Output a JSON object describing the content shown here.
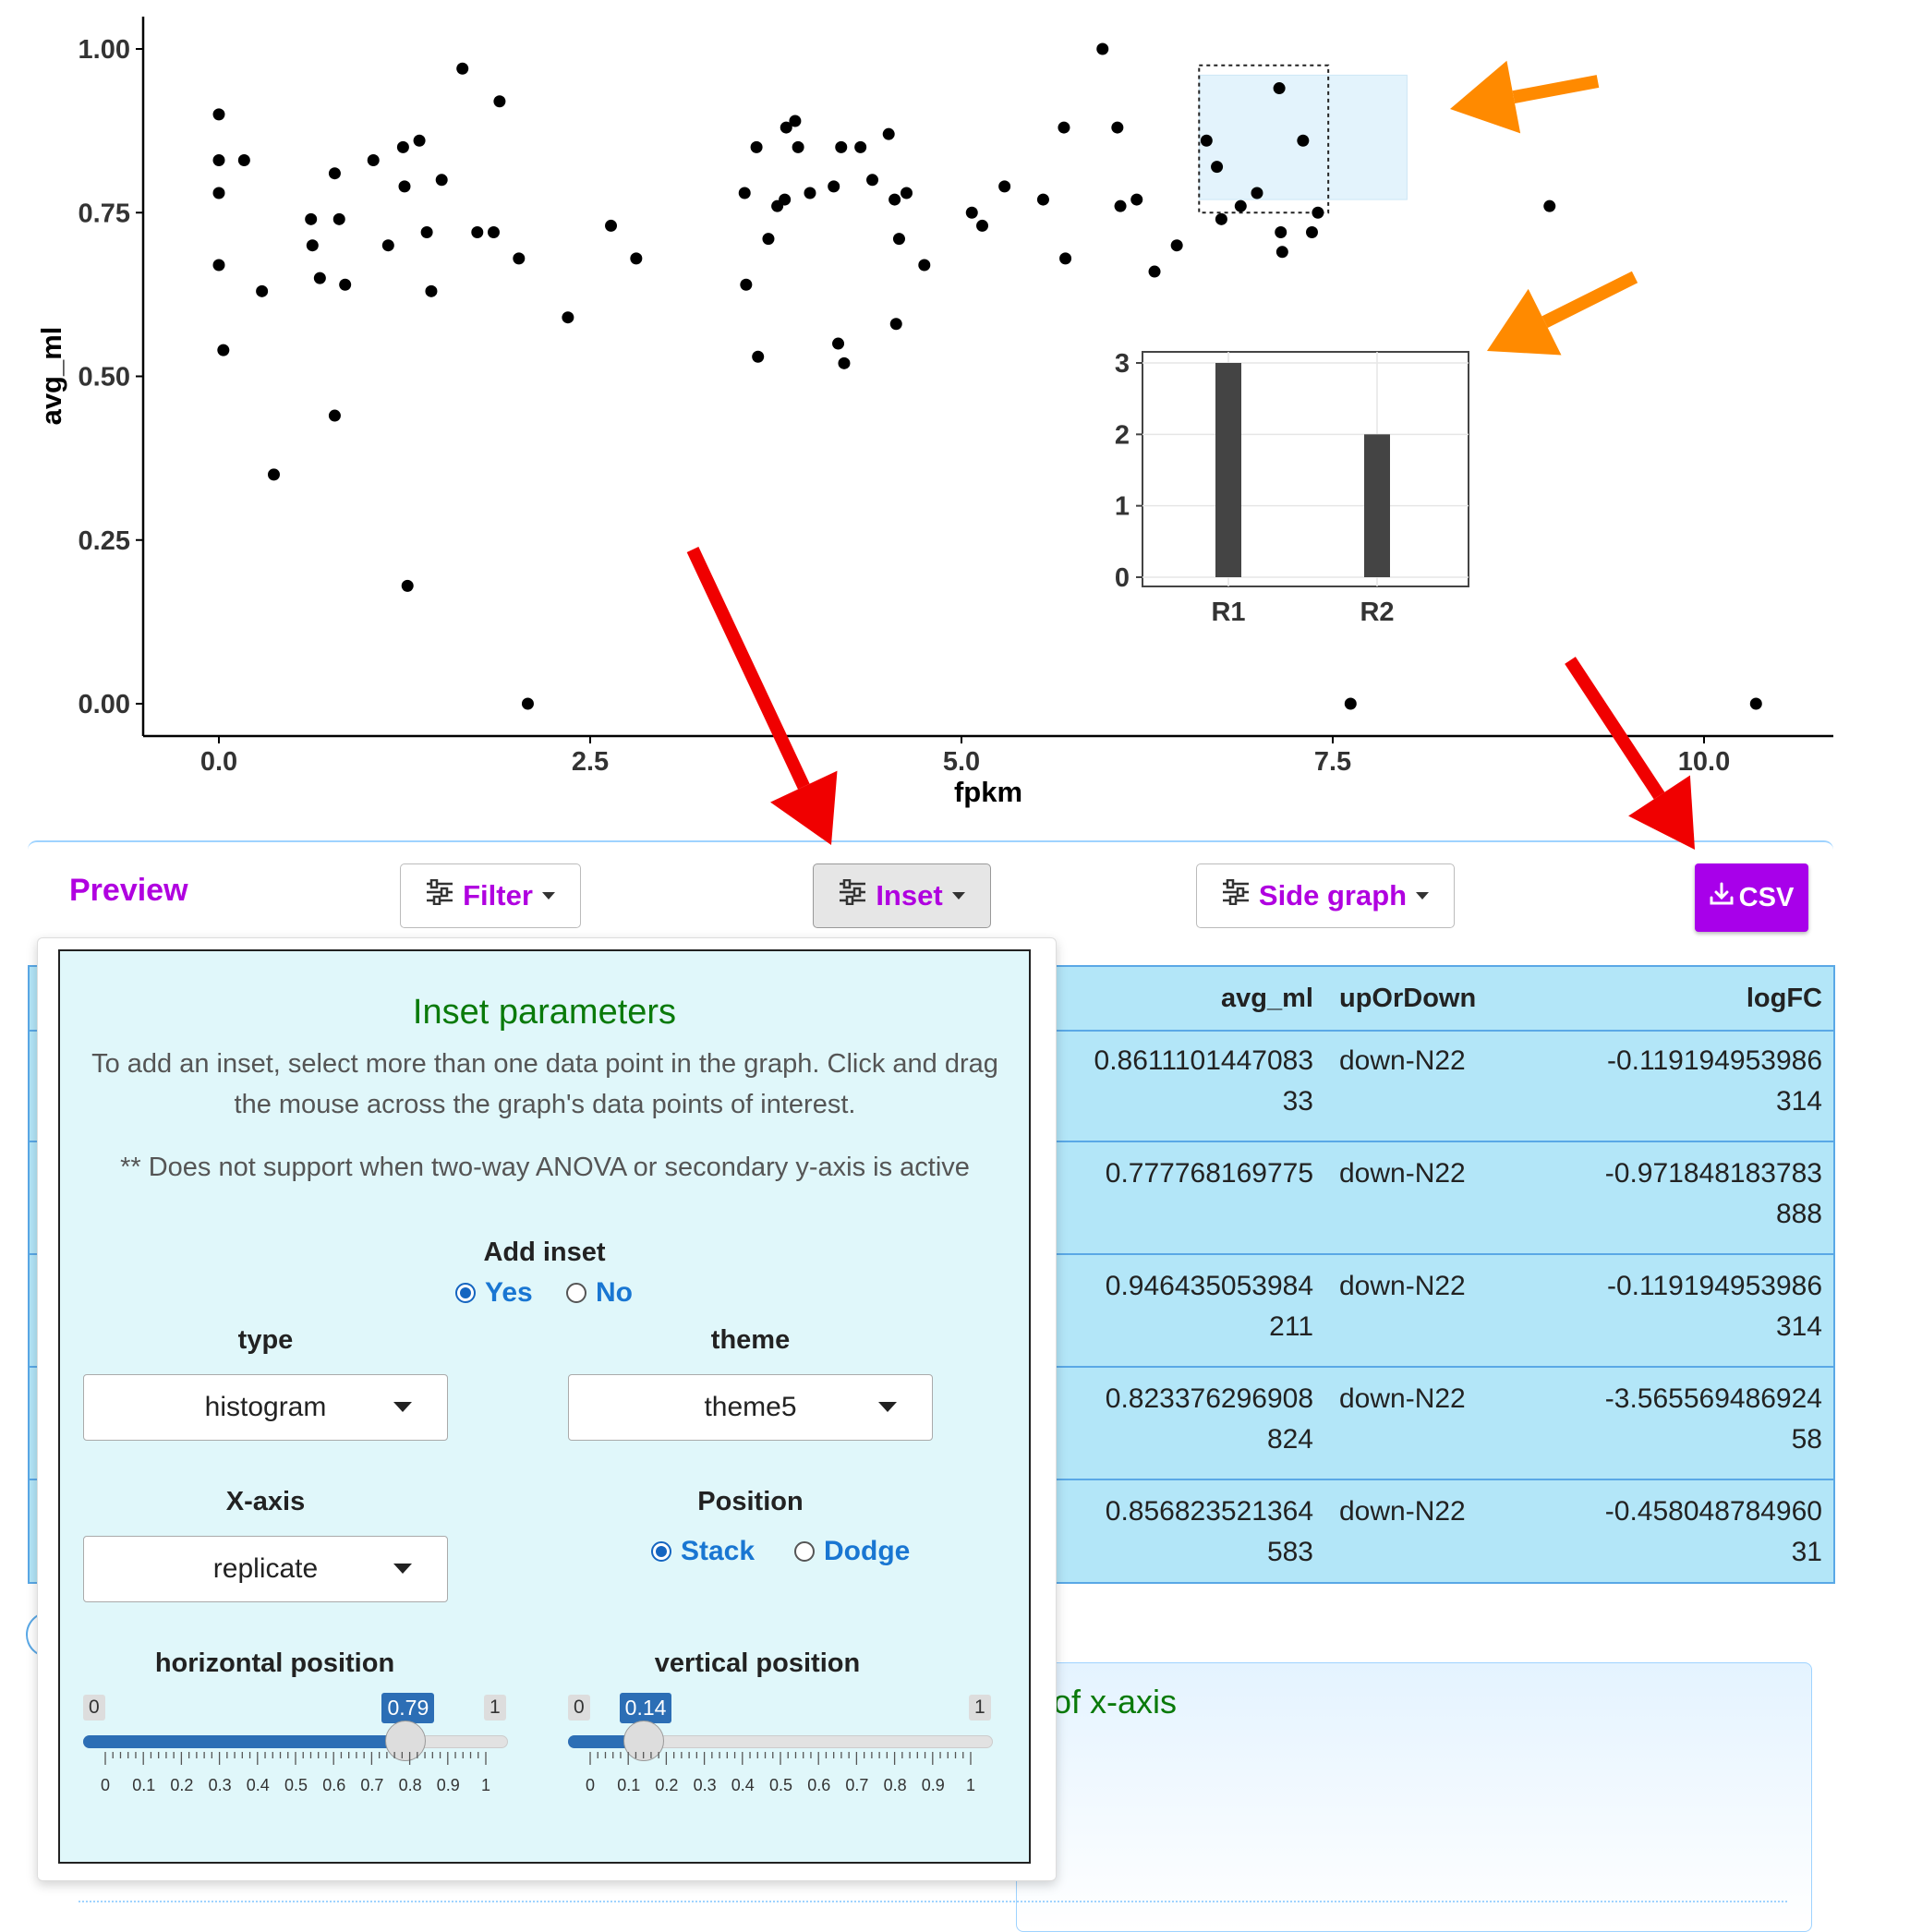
{
  "chart_data": {
    "type": "scatter",
    "xlabel": "fpkm",
    "ylabel": "avg_ml",
    "xlim": [
      -1.0,
      10.3
    ],
    "ylim": [
      -0.05,
      1.05
    ],
    "xticks": [
      "0.0",
      "2.5",
      "5.0",
      "7.5",
      "10.0"
    ],
    "yticks": [
      "0.00",
      "0.25",
      "0.50",
      "0.75",
      "1.00"
    ],
    "x": [
      0.0,
      0.0,
      0.0,
      0.0,
      0.03,
      0.17,
      0.29,
      0.37,
      0.62,
      0.63,
      0.68,
      0.78,
      0.78,
      0.81,
      0.85,
      1.04,
      1.14,
      1.24,
      1.25,
      1.27,
      1.35,
      1.4,
      1.43,
      1.5,
      1.64,
      1.74,
      1.85,
      1.89,
      2.02,
      2.08,
      2.35,
      2.64,
      2.81,
      3.54,
      3.55,
      3.62,
      3.63,
      3.7,
      3.76,
      3.81,
      3.82,
      3.88,
      3.9,
      3.98,
      4.14,
      4.17,
      4.19,
      4.21,
      4.32,
      4.4,
      4.51,
      4.55,
      4.56,
      4.58,
      4.63,
      4.75,
      5.07,
      5.14,
      5.29,
      5.55,
      5.69,
      5.7,
      5.95,
      6.05,
      6.07,
      6.18,
      6.3,
      6.45,
      6.65,
      6.72,
      6.75,
      6.88,
      6.99,
      7.14,
      7.15,
      7.16,
      7.3,
      7.36,
      7.4,
      7.62,
      8.96,
      10.35
    ],
    "y": [
      0.9,
      0.83,
      0.78,
      0.67,
      0.54,
      0.83,
      0.63,
      0.35,
      0.74,
      0.7,
      0.65,
      0.81,
      0.44,
      0.74,
      0.64,
      0.83,
      0.7,
      0.85,
      0.79,
      0.18,
      0.86,
      0.72,
      0.63,
      0.8,
      0.97,
      0.72,
      0.72,
      0.92,
      0.68,
      0.0,
      0.59,
      0.73,
      0.68,
      0.78,
      0.64,
      0.85,
      0.53,
      0.71,
      0.76,
      0.77,
      0.88,
      0.89,
      0.85,
      0.78,
      0.79,
      0.55,
      0.85,
      0.52,
      0.85,
      0.8,
      0.87,
      0.77,
      0.58,
      0.71,
      0.78,
      0.67,
      0.75,
      0.73,
      0.79,
      0.77,
      0.88,
      0.68,
      1.0,
      0.88,
      0.76,
      0.77,
      0.66,
      0.7,
      0.86,
      0.82,
      0.74,
      0.76,
      0.78,
      0.94,
      0.72,
      0.69,
      0.86,
      0.72,
      0.75,
      0.0,
      0.76,
      0.0
    ],
    "inset": {
      "type": "bar",
      "categories": [
        "R1",
        "R2"
      ],
      "values": [
        3,
        2
      ],
      "yticks": [
        "0",
        "1",
        "2",
        "3"
      ]
    }
  },
  "panel": {
    "title": "Preview",
    "filter_label": "Filter",
    "inset_label": "Inset",
    "side_graph_label": "Side graph",
    "csv_label": "CSV"
  },
  "table": {
    "headers": [
      "avg_ml",
      "upOrDown",
      "logFC"
    ],
    "rows": [
      {
        "avg_ml": [
          "0.8611101447083",
          "33"
        ],
        "upOrDown": "down-N22",
        "logFC": [
          "-0.119194953986",
          "314"
        ]
      },
      {
        "avg_ml": [
          "0.777768169775",
          ""
        ],
        "upOrDown": "down-N22",
        "logFC": [
          "-0.971848183783",
          "888"
        ]
      },
      {
        "avg_ml": [
          "0.946435053984",
          "211"
        ],
        "upOrDown": "down-N22",
        "logFC": [
          "-0.119194953986",
          "314"
        ]
      },
      {
        "avg_ml": [
          "0.823376296908",
          "824"
        ],
        "upOrDown": "down-N22",
        "logFC": [
          "-3.565569486924",
          "58"
        ]
      },
      {
        "avg_ml": [
          "0.856823521364",
          "583"
        ],
        "upOrDown": "down-N22",
        "logFC": [
          "-0.458048784960",
          "31"
        ]
      }
    ]
  },
  "inset_popup": {
    "title": "Inset parameters",
    "desc": "To add an inset, select more than one data point in the graph. Click and drag the mouse across the graph's data points of interest.",
    "note": "** Does not support when two-way ANOVA or secondary y-axis is active",
    "add_inset_label": "Add inset",
    "yes": "Yes",
    "no": "No",
    "add_inset_value": "Yes",
    "type_label": "type",
    "type_value": "histogram",
    "theme_label": "theme",
    "theme_value": "theme5",
    "xaxis_label": "X-axis",
    "xaxis_value": "replicate",
    "position_label": "Position",
    "stack": "Stack",
    "dodge": "Dodge",
    "position_value": "Stack",
    "hpos_label": "horizontal position",
    "hpos_value": 0.79,
    "hpos_value_text": "0.79",
    "vpos_label": "vertical position",
    "vpos_value": 0.14,
    "vpos_value_text": "0.14",
    "slider_min": "0",
    "slider_max": "1",
    "slider_ticks": [
      "0",
      "0.1",
      "0.2",
      "0.3",
      "0.4",
      "0.5",
      "0.6",
      "0.7",
      "0.8",
      "0.9",
      "1"
    ]
  },
  "lower": {
    "partial_text": "of x-axis"
  },
  "colors": {
    "accent": "#a800ea",
    "table_bg": "#b3e6f8",
    "arrow_red": "#f00000",
    "arrow_orange": "#ff8a00",
    "popup_title": "#0a7a0a",
    "slider_blue": "#2c6eb5",
    "selection_fill": "#e3f3fc"
  }
}
